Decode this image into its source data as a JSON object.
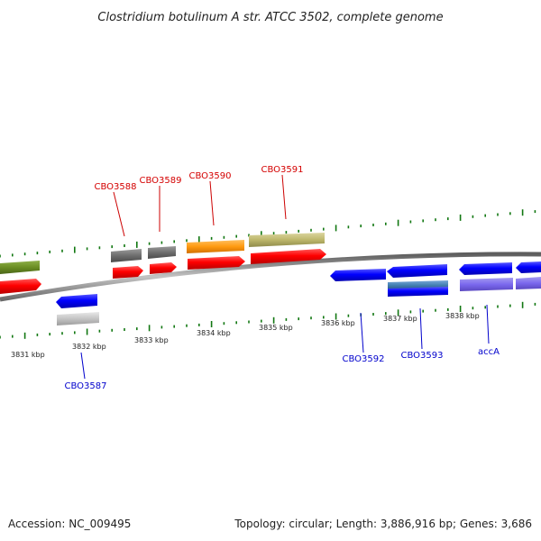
{
  "title": "Clostridium botulinum A str. ATCC 3502, complete genome",
  "footer": {
    "accession": "Accession: NC_009495",
    "summary": "Topology: circular; Length: 3,886,916 bp; Genes: 3,686"
  },
  "colors": {
    "forward_label": "#d40000",
    "reverse_label": "#0000cc",
    "tick": "#117711",
    "backbone": "#8c8c8c"
  },
  "kbp_labels": [
    "3831 kbp",
    "3832 kbp",
    "3833 kbp",
    "3834 kbp",
    "3835 kbp",
    "3836 kbp",
    "3837 kbp",
    "3838 kbp"
  ],
  "gene_labels": {
    "cbo3588": "CBO3588",
    "cbo3589": "CBO3589",
    "cbo3590": "CBO3590",
    "cbo3591": "CBO3591",
    "cbo3587": "CBO3587",
    "cbo3592": "CBO3592",
    "cbo3593": "CBO3593",
    "accA": "accA"
  }
}
